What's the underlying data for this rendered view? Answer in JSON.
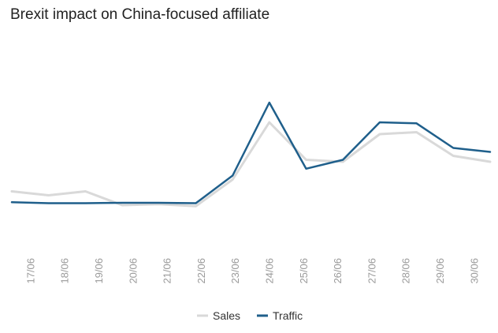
{
  "chart_data": {
    "type": "line",
    "title": "Brexit impact on China-focused affiliate",
    "xlabel": "",
    "ylabel": "",
    "categories": [
      "17/06",
      "18/06",
      "19/06",
      "20/06",
      "21/06",
      "22/06",
      "23/06",
      "24/06",
      "25/06",
      "26/06",
      "27/06",
      "28/06",
      "29/06",
      "30/06"
    ],
    "ylim": [
      0,
      100
    ],
    "grid": false,
    "legend_position": "bottom",
    "series": [
      {
        "name": "Sales",
        "color": "#d9d9d9",
        "values": [
          27,
          25,
          27,
          20,
          20.5,
          19.5,
          33,
          62,
          43,
          42,
          56,
          57,
          45,
          42
        ]
      },
      {
        "name": "Traffic",
        "color": "#1f5f8b",
        "values": [
          21.5,
          21,
          21,
          21.2,
          21.2,
          21,
          35,
          72,
          38.5,
          43,
          62,
          61.5,
          49,
          47
        ]
      }
    ]
  }
}
